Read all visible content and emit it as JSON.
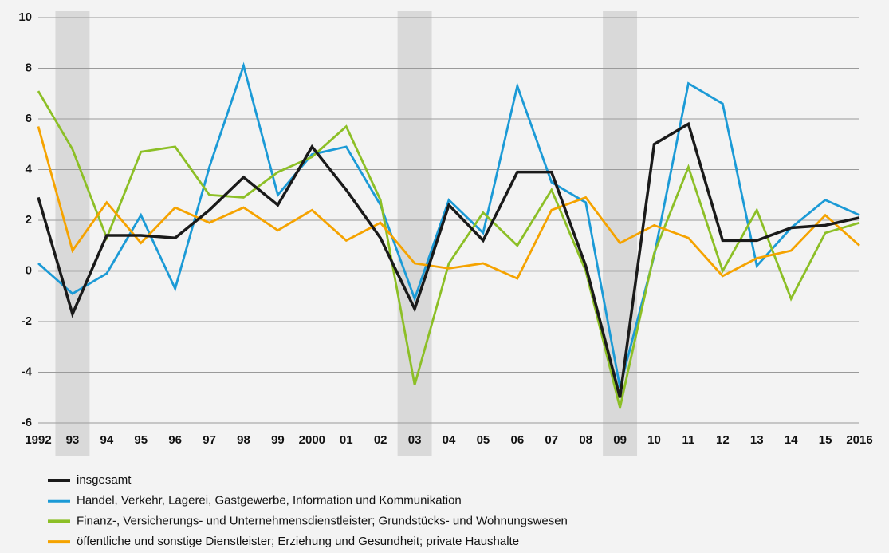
{
  "chart_data": {
    "type": "line",
    "categories": [
      "1992",
      "93",
      "94",
      "95",
      "96",
      "97",
      "98",
      "99",
      "2000",
      "01",
      "02",
      "03",
      "04",
      "05",
      "06",
      "07",
      "08",
      "09",
      "10",
      "11",
      "12",
      "13",
      "14",
      "15",
      "2016"
    ],
    "highlight_categories": [
      "93",
      "03",
      "09"
    ],
    "series": [
      {
        "name": "insgesamt",
        "color": "#1a1a1a",
        "values": [
          2.9,
          -1.7,
          1.4,
          1.4,
          1.3,
          2.4,
          3.7,
          2.6,
          4.9,
          3.2,
          1.3,
          -1.5,
          2.6,
          1.2,
          3.9,
          3.9,
          0.2,
          -5.0,
          5.0,
          5.8,
          1.2,
          1.2,
          1.7,
          1.8,
          2.1
        ]
      },
      {
        "name": "Handel, Verkehr, Lagerei, Gastgewerbe, Information und Kommunikation",
        "color": "#1b9ad6",
        "values": [
          0.3,
          -0.9,
          -0.1,
          2.2,
          -0.7,
          4.1,
          8.1,
          3.0,
          4.6,
          4.9,
          2.6,
          -1.1,
          2.8,
          1.5,
          7.3,
          3.5,
          2.7,
          -4.6,
          0.6,
          7.4,
          6.6,
          0.2,
          1.7,
          2.8,
          2.2
        ]
      },
      {
        "name": "Finanz-, Versicherungs- und Unternehmensdienstleister; Grundstücks- und Wohnungswesen",
        "color": "#8cbf26",
        "values": [
          7.1,
          4.8,
          1.3,
          4.7,
          4.9,
          3.0,
          2.9,
          3.9,
          4.5,
          5.7,
          2.8,
          -4.5,
          0.3,
          2.3,
          1.0,
          3.2,
          0.0,
          -5.4,
          0.7,
          4.1,
          0.0,
          2.4,
          -1.1,
          1.5,
          1.9
        ]
      },
      {
        "name": "öffentliche und sonstige Dienstleister; Erziehung und Gesundheit; private Haushalte",
        "color": "#f5a300",
        "values": [
          5.7,
          0.8,
          2.7,
          1.1,
          2.5,
          1.9,
          2.5,
          1.6,
          2.4,
          1.2,
          1.9,
          0.3,
          0.1,
          0.3,
          -0.3,
          2.4,
          2.9,
          1.1,
          1.8,
          1.3,
          -0.2,
          0.5,
          0.8,
          2.2,
          1.0
        ]
      }
    ],
    "ylim": [
      -6,
      10
    ],
    "yticks": [
      -6,
      -4,
      -2,
      0,
      2,
      4,
      6,
      8,
      10
    ],
    "grid": true
  }
}
